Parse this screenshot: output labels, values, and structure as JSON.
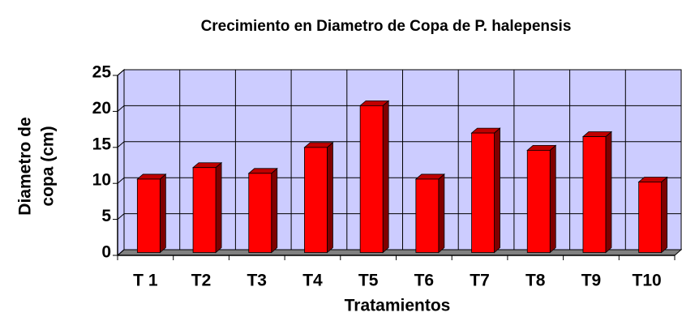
{
  "chart_data": {
    "type": "bar3d",
    "title": "Crecimiento en Diametro de Copa de P. halepensis",
    "x_label": "Tratamientos",
    "y_label": [
      "Diametro de",
      "copa (cm)"
    ],
    "categories": [
      "T 1",
      "T2",
      "T3",
      "T4",
      "T5",
      "T6",
      "T7",
      "T8",
      "T9",
      "T10"
    ],
    "values": [
      10.2,
      11.8,
      11.0,
      14.6,
      20.4,
      10.2,
      16.6,
      14.2,
      16.1,
      9.8
    ],
    "color": "#ff0000",
    "ylim": [
      0,
      25
    ],
    "yticks": [
      0,
      5,
      10,
      15,
      20,
      25
    ],
    "grid": true
  }
}
